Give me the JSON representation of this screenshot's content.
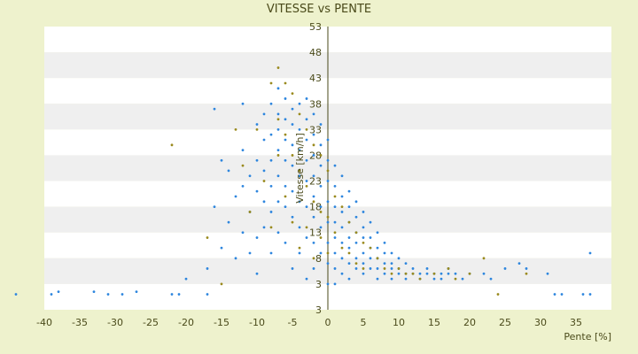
{
  "chart_data": {
    "type": "scatter",
    "title": "VITESSE vs PENTE",
    "xlabel": "Pente [%]",
    "ylabel": "Vitesse [km/h]",
    "xlim": [
      -40,
      40
    ],
    "ylim": [
      -2,
      53
    ],
    "x_ticks": [
      "-40",
      "-35",
      "-30",
      "-25",
      "-20",
      "-15",
      "-10",
      "-5",
      "0",
      "5",
      "10",
      "15",
      "20",
      "25",
      "30",
      "35"
    ],
    "y_ticks": [
      "3",
      "3",
      "8",
      "13",
      "18",
      "23",
      "28",
      "33",
      "38",
      "43",
      "48",
      "53"
    ],
    "grid": "horizontal bands",
    "colors": {
      "series_a": "#2e86de",
      "series_b": "#9a8a1e",
      "background": "#eef2cd",
      "band_light": "#ffffff",
      "band_dark": "#efefef"
    },
    "series": [
      {
        "color": "#2e86de",
        "points": [
          [
            -44,
            1
          ],
          [
            -39,
            1
          ],
          [
            -38,
            1.5
          ],
          [
            -33,
            1.5
          ],
          [
            -31,
            1
          ],
          [
            -29,
            1
          ],
          [
            -27,
            1.5
          ],
          [
            -22,
            1
          ],
          [
            -21,
            1
          ],
          [
            -20,
            4
          ],
          [
            -17,
            1
          ],
          [
            -17,
            6
          ],
          [
            -16,
            37
          ],
          [
            -16,
            18
          ],
          [
            -15,
            27
          ],
          [
            -15,
            10
          ],
          [
            -14,
            25
          ],
          [
            -14,
            15
          ],
          [
            -13,
            20
          ],
          [
            -13,
            8
          ],
          [
            -12,
            38
          ],
          [
            -12,
            29
          ],
          [
            -12,
            22
          ],
          [
            -12,
            13
          ],
          [
            -11,
            24
          ],
          [
            -11,
            17
          ],
          [
            -11,
            9
          ],
          [
            -10,
            34
          ],
          [
            -10,
            27
          ],
          [
            -10,
            21
          ],
          [
            -10,
            12
          ],
          [
            -10,
            5
          ],
          [
            -9,
            36
          ],
          [
            -9,
            31
          ],
          [
            -9,
            25
          ],
          [
            -9,
            19
          ],
          [
            -9,
            14
          ],
          [
            -8,
            38
          ],
          [
            -8,
            32
          ],
          [
            -8,
            27
          ],
          [
            -8,
            22
          ],
          [
            -8,
            17
          ],
          [
            -8,
            9
          ],
          [
            -7,
            41
          ],
          [
            -7,
            36
          ],
          [
            -7,
            33
          ],
          [
            -7,
            29
          ],
          [
            -7,
            24
          ],
          [
            -7,
            19
          ],
          [
            -7,
            13
          ],
          [
            -6,
            39
          ],
          [
            -6,
            35
          ],
          [
            -6,
            31
          ],
          [
            -6,
            27
          ],
          [
            -6,
            22
          ],
          [
            -6,
            18
          ],
          [
            -6,
            11
          ],
          [
            -5,
            37
          ],
          [
            -5,
            34
          ],
          [
            -5,
            30
          ],
          [
            -5,
            26
          ],
          [
            -5,
            21
          ],
          [
            -5,
            16
          ],
          [
            -5,
            6
          ],
          [
            -4,
            38
          ],
          [
            -4,
            33
          ],
          [
            -4,
            29
          ],
          [
            -4,
            24
          ],
          [
            -4,
            19
          ],
          [
            -4,
            14
          ],
          [
            -4,
            9
          ],
          [
            -3,
            39
          ],
          [
            -3,
            35
          ],
          [
            -3,
            31
          ],
          [
            -3,
            27
          ],
          [
            -3,
            23
          ],
          [
            -3,
            18
          ],
          [
            -3,
            12
          ],
          [
            -3,
            4
          ],
          [
            -2,
            36
          ],
          [
            -2,
            32
          ],
          [
            -2,
            28
          ],
          [
            -2,
            24
          ],
          [
            -2,
            20
          ],
          [
            -2,
            16
          ],
          [
            -2,
            11
          ],
          [
            -2,
            6
          ],
          [
            -1,
            34
          ],
          [
            -1,
            30
          ],
          [
            -1,
            26
          ],
          [
            -1,
            22
          ],
          [
            -1,
            18
          ],
          [
            -1,
            14
          ],
          [
            -1,
            9
          ],
          [
            0,
            31
          ],
          [
            0,
            27
          ],
          [
            0,
            23
          ],
          [
            0,
            19
          ],
          [
            0,
            15
          ],
          [
            0,
            11
          ],
          [
            0,
            7
          ],
          [
            0,
            3
          ],
          [
            1,
            26
          ],
          [
            1,
            22
          ],
          [
            1,
            18
          ],
          [
            1,
            15
          ],
          [
            1,
            12
          ],
          [
            1,
            9
          ],
          [
            1,
            6
          ],
          [
            1,
            3
          ],
          [
            2,
            24
          ],
          [
            2,
            20
          ],
          [
            2,
            17
          ],
          [
            2,
            14
          ],
          [
            2,
            11
          ],
          [
            2,
            8
          ],
          [
            2,
            5
          ],
          [
            3,
            21
          ],
          [
            3,
            18
          ],
          [
            3,
            15
          ],
          [
            3,
            12
          ],
          [
            3,
            10
          ],
          [
            3,
            7
          ],
          [
            3,
            4
          ],
          [
            4,
            19
          ],
          [
            4,
            16
          ],
          [
            4,
            13
          ],
          [
            4,
            11
          ],
          [
            4,
            8
          ],
          [
            4,
            6
          ],
          [
            5,
            17
          ],
          [
            5,
            14
          ],
          [
            5,
            12
          ],
          [
            5,
            9
          ],
          [
            5,
            7
          ],
          [
            5,
            5
          ],
          [
            6,
            15
          ],
          [
            6,
            12
          ],
          [
            6,
            10
          ],
          [
            6,
            8
          ],
          [
            6,
            6
          ],
          [
            7,
            13
          ],
          [
            7,
            10
          ],
          [
            7,
            8
          ],
          [
            7,
            6
          ],
          [
            7,
            4
          ],
          [
            8,
            11
          ],
          [
            8,
            9
          ],
          [
            8,
            7
          ],
          [
            8,
            5
          ],
          [
            9,
            9
          ],
          [
            9,
            7
          ],
          [
            9,
            6
          ],
          [
            9,
            4
          ],
          [
            10,
            8
          ],
          [
            10,
            6
          ],
          [
            10,
            5
          ],
          [
            11,
            7
          ],
          [
            11,
            5
          ],
          [
            11,
            4
          ],
          [
            12,
            6
          ],
          [
            12,
            5
          ],
          [
            13,
            5
          ],
          [
            13,
            4
          ],
          [
            14,
            6
          ],
          [
            14,
            5
          ],
          [
            15,
            5
          ],
          [
            15,
            4
          ],
          [
            16,
            5
          ],
          [
            16,
            4
          ],
          [
            17,
            6
          ],
          [
            17,
            5
          ],
          [
            18,
            5
          ],
          [
            19,
            4
          ],
          [
            20,
            5
          ],
          [
            22,
            5
          ],
          [
            23,
            4
          ],
          [
            25,
            6
          ],
          [
            27,
            7
          ],
          [
            28,
            6
          ],
          [
            31,
            5
          ],
          [
            32,
            1
          ],
          [
            33,
            1
          ],
          [
            36,
            1
          ],
          [
            37,
            1
          ],
          [
            37,
            9
          ]
        ]
      },
      {
        "color": "#9a8a1e",
        "points": [
          [
            -22,
            30
          ],
          [
            -17,
            12
          ],
          [
            -15,
            3
          ],
          [
            -13,
            33
          ],
          [
            -12,
            26
          ],
          [
            -11,
            17
          ],
          [
            -10,
            33
          ],
          [
            -9,
            23
          ],
          [
            -8,
            42
          ],
          [
            -8,
            14
          ],
          [
            -7,
            45
          ],
          [
            -7,
            35
          ],
          [
            -7,
            28
          ],
          [
            -6,
            42
          ],
          [
            -6,
            32
          ],
          [
            -6,
            20
          ],
          [
            -5,
            40
          ],
          [
            -5,
            28
          ],
          [
            -5,
            15
          ],
          [
            -4,
            36
          ],
          [
            -4,
            25
          ],
          [
            -4,
            10
          ],
          [
            -3,
            33
          ],
          [
            -3,
            22
          ],
          [
            -3,
            14
          ],
          [
            -2,
            30
          ],
          [
            -2,
            19
          ],
          [
            -2,
            8
          ],
          [
            -1,
            28
          ],
          [
            -1,
            17
          ],
          [
            -1,
            12
          ],
          [
            0,
            25
          ],
          [
            0,
            16
          ],
          [
            0,
            9
          ],
          [
            1,
            20
          ],
          [
            1,
            13
          ],
          [
            2,
            18
          ],
          [
            2,
            10
          ],
          [
            3,
            15
          ],
          [
            3,
            9
          ],
          [
            4,
            13
          ],
          [
            4,
            7
          ],
          [
            5,
            11
          ],
          [
            5,
            6
          ],
          [
            6,
            10
          ],
          [
            7,
            8
          ],
          [
            8,
            6
          ],
          [
            9,
            5
          ],
          [
            10,
            6
          ],
          [
            11,
            5
          ],
          [
            12,
            5
          ],
          [
            13,
            4
          ],
          [
            15,
            5
          ],
          [
            17,
            6
          ],
          [
            18,
            4
          ],
          [
            20,
            5
          ],
          [
            22,
            8
          ],
          [
            24,
            1
          ],
          [
            28,
            5
          ]
        ]
      }
    ]
  }
}
